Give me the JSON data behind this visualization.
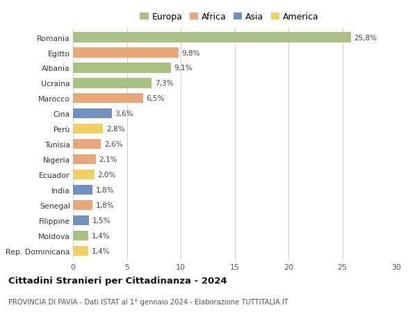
{
  "countries": [
    "Romania",
    "Egitto",
    "Albania",
    "Ucraina",
    "Marocco",
    "Cina",
    "Perù",
    "Tunisia",
    "Nigeria",
    "Ecuador",
    "India",
    "Senegal",
    "Filippine",
    "Moldova",
    "Rep. Dominicana"
  ],
  "values": [
    25.8,
    9.8,
    9.1,
    7.3,
    6.5,
    3.6,
    2.8,
    2.6,
    2.1,
    2.0,
    1.8,
    1.8,
    1.5,
    1.4,
    1.4
  ],
  "labels": [
    "25,8%",
    "9,8%",
    "9,1%",
    "7,3%",
    "6,5%",
    "3,6%",
    "2,8%",
    "2,6%",
    "2,1%",
    "2,0%",
    "1,8%",
    "1,8%",
    "1,5%",
    "1,4%",
    "1,4%"
  ],
  "continents": [
    "Europa",
    "Africa",
    "Europa",
    "Europa",
    "Africa",
    "Asia",
    "America",
    "Africa",
    "Africa",
    "America",
    "Asia",
    "Africa",
    "Asia",
    "Europa",
    "America"
  ],
  "colors": {
    "Europa": "#a8c080",
    "Africa": "#e8a878",
    "Asia": "#7090c0",
    "America": "#f0d060"
  },
  "legend_order": [
    "Europa",
    "Africa",
    "Asia",
    "America"
  ],
  "title": "Cittadini Stranieri per Cittadinanza - 2024",
  "subtitle": "PROVINCIA DI PAVIA - Dati ISTAT al 1° gennaio 2024 - Elaborazione TUTTITALIA.IT",
  "xlim": [
    0,
    30
  ],
  "xticks": [
    0,
    5,
    10,
    15,
    20,
    25,
    30
  ],
  "bg_color": "#ffffff",
  "grid_color": "#d0d0d0",
  "bar_height": 0.65
}
